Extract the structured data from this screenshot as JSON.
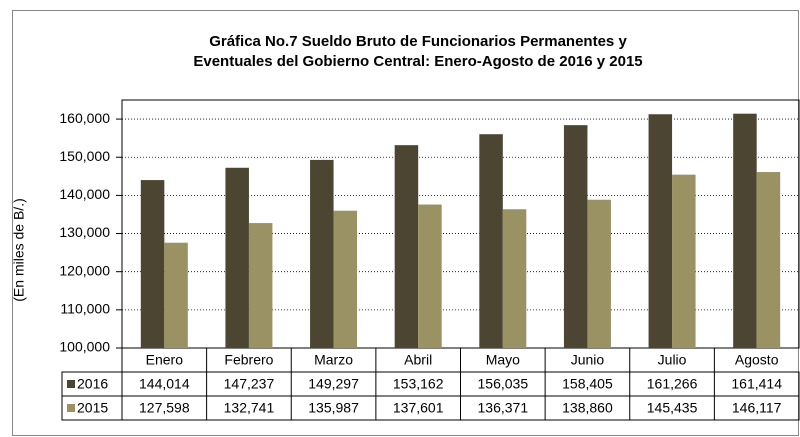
{
  "chart_data": {
    "type": "bar",
    "title": [
      "Gráfica No.7 Sueldo Bruto de Funcionarios Permanentes y",
      "Eventuales del Gobierno Central: Enero-Agosto de 2016 y 2015"
    ],
    "y_label": "(En miles de B/.)",
    "categories": [
      "Enero",
      "Febrero",
      "Marzo",
      "Abril",
      "Mayo",
      "Junio",
      "Julio",
      "Agosto"
    ],
    "series": [
      {
        "name": "2016",
        "color": "#4b4532",
        "values": [
          144014,
          147237,
          149297,
          153162,
          156035,
          158405,
          161266,
          161414
        ],
        "value_labels": [
          "144,014",
          "147,237",
          "149,297",
          "153,162",
          "156,035",
          "158,405",
          "161,266",
          "161,414"
        ]
      },
      {
        "name": "2015",
        "color": "#9a9263",
        "values": [
          127598,
          132741,
          135987,
          137601,
          136371,
          138860,
          145435,
          146117
        ],
        "value_labels": [
          "127,598",
          "132,741",
          "135,987",
          "137,601",
          "136,371",
          "138,860",
          "145,435",
          "146,117"
        ]
      }
    ],
    "ylim": [
      100000,
      165000
    ],
    "yticks": [
      {
        "value": 100000,
        "label": "100,000"
      },
      {
        "value": 110000,
        "label": "110,000"
      },
      {
        "value": 120000,
        "label": "120,000"
      },
      {
        "value": 130000,
        "label": "130,000"
      },
      {
        "value": 140000,
        "label": "140,000"
      },
      {
        "value": 150000,
        "label": "150,000"
      },
      {
        "value": 160000,
        "label": "160,000"
      }
    ],
    "grid": true
  }
}
